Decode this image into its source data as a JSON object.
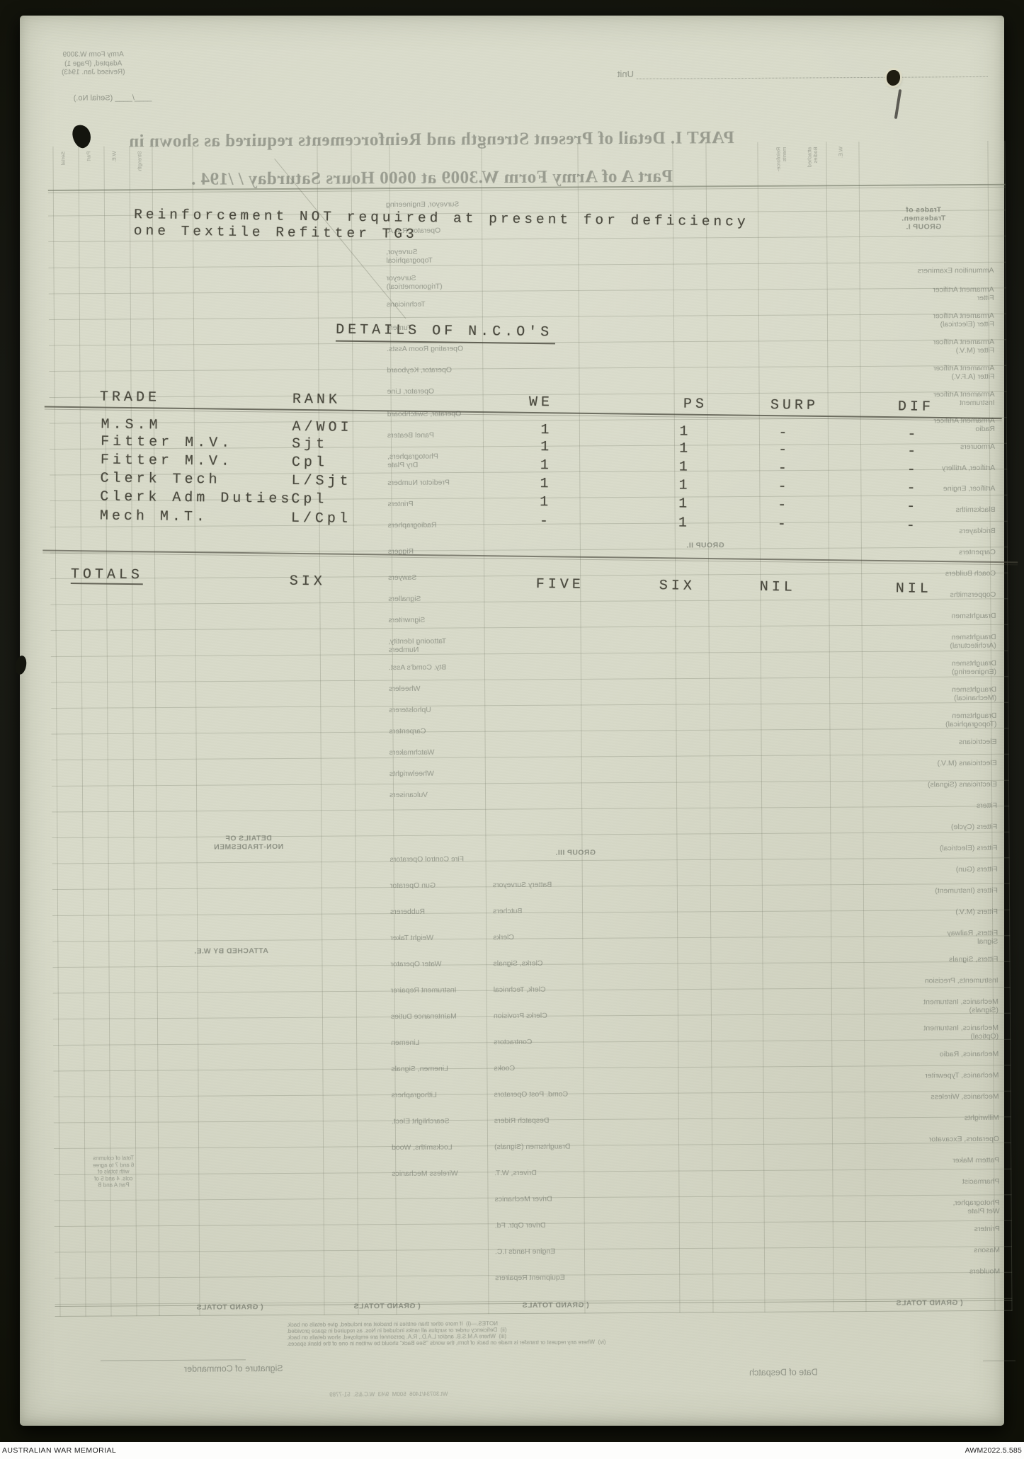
{
  "archive_bar": {
    "institution": "AUSTRALIAN WAR MEMORIAL",
    "accession": "AWM2022.5.585"
  },
  "typed": {
    "notice": [
      "Reinforcement NOT required at present for deficiency",
      "one Textile Refitter TG3"
    ],
    "section_title": "DETAILS OF N.C.O'S",
    "table": {
      "headers": [
        "TRADE",
        "RANK",
        "WE",
        "PS",
        "SURP",
        "DIF"
      ],
      "rows": [
        [
          "M.S.M",
          "A/WOI",
          "1",
          "1",
          "-",
          "-"
        ],
        [
          "Fitter M.V.",
          "Sjt",
          "1",
          "1",
          "-",
          "-"
        ],
        [
          "Fitter M.V.",
          "Cpl",
          "1",
          "1",
          "-",
          "-"
        ],
        [
          "Clerk Tech",
          "L/Sjt",
          "1",
          "1",
          "-",
          "-"
        ],
        [
          "Clerk Adm Duties",
          "Cpl",
          "1",
          "1",
          "-",
          "-"
        ],
        [
          "Mech M.T.",
          "L/Cpl",
          "-",
          "1",
          "-",
          "-"
        ]
      ],
      "totals": [
        "TOTALS",
        "SIX",
        "FIVE",
        "SIX",
        "NIL",
        "NIL"
      ]
    },
    "pencil_mark": "1"
  },
  "bleedthrough": {
    "form_ref": [
      "Army Form W.3009",
      "Adapted, (Page 1)",
      "(Revised Jan. 1943)"
    ],
    "serial": "____/____  (Serial No.)",
    "unit": "Unit",
    "headline": [
      "PART I.  Detail of Present Strength and Reinforcements required as shown in",
      "Part A of Army Form W.3009 at 0600 Hours Saturday     /     /194   ."
    ],
    "group1": [
      "Trades of",
      "Tradesmen.",
      "GROUP I."
    ],
    "group2": "GROUP II.",
    "group3": "GROUP III.",
    "details_nt": [
      "DETAILS OF",
      "NON-TRADESMEN"
    ],
    "attached": "ATTACHED BY W.E.",
    "grand_totals": "GRAND TOTALS",
    "sig": "Signature of Commander",
    "despatch": "Date of Despatch",
    "print_code": "Wt.30734/1406  500M  9/43  W.C.&S.  51-7789",
    "col_headers": [
      [
        86,
        "Serial"
      ],
      [
        122,
        "Part"
      ],
      [
        158,
        "W.E."
      ],
      [
        194,
        "Strength"
      ],
      [
        1096,
        "Reinforce- ments"
      ],
      [
        1140,
        "attached Bodies"
      ],
      [
        1184,
        "W.E."
      ]
    ],
    "notes": [
      "NOTES.—(i)  If more other than entries in bracket are included, give details on back.",
      "(ii)  Deficiency under or surplus all ranks included in Nos. as required in space provided.",
      "(iii)  Where A.M.S.B. and/or L.A.D., R.A. personnel are employed, show details on back.",
      "(iv)  Where any request or transfer is made on back of form, the words \"See Back\" should be written in one of the blank spaces."
    ],
    "left_note": [
      "Total of columns",
      "6 and 7 to agree",
      "with totals of",
      "cols. 4 and 5 of",
      "Part A and B"
    ],
    "mid_col": [
      [
        285,
        "Surveyor, Engineering"
      ],
      [
        322,
        "Operator, R.A.A."
      ],
      [
        352,
        "Surveyor,|Topographical"
      ],
      [
        389,
        "Surveyor|(Trigonometrical)"
      ],
      [
        426,
        "Technicians"
      ],
      [
        459,
        "Turners"
      ],
      [
        489,
        "Operating Room Assts."
      ],
      [
        519,
        "Operator, Keyboard"
      ],
      [
        549,
        "Operator, Line"
      ],
      [
        581,
        "Operator, Switchboard"
      ],
      [
        611,
        "Panel Beaters"
      ],
      [
        641,
        "Photographers,|Dry Plate"
      ],
      [
        678,
        "Predictor Numbers"
      ],
      [
        708,
        "Printers"
      ],
      [
        738,
        "Radiographers"
      ],
      [
        775,
        "Riggers"
      ],
      [
        812,
        "Sawyers"
      ],
      [
        842,
        "Signallers"
      ],
      [
        872,
        "Signwriters"
      ],
      [
        902,
        "Tattooing Identity,|Numbers"
      ],
      [
        939,
        "Bty. Comd's Asst."
      ],
      [
        969,
        "Wheelers"
      ],
      [
        999,
        "Upholsterers"
      ],
      [
        1029,
        "Carpenters"
      ],
      [
        1059,
        "Watchmakers"
      ],
      [
        1089,
        "Wheelwrights"
      ],
      [
        1119,
        "Vulcanisers"
      ],
      [
        1210,
        "Fire Control Operators"
      ],
      [
        1247,
        "Gun Operator"
      ],
      [
        1284,
        "Rubberers"
      ],
      [
        1321,
        "Weight Taker"
      ],
      [
        1358,
        "Water Operator"
      ],
      [
        1395,
        "Instrument Repairer"
      ],
      [
        1432,
        "Maintenance Duties"
      ],
      [
        1469,
        "Linemen"
      ],
      [
        1506,
        "Linemen, Signals"
      ],
      [
        1543,
        "Lithographers"
      ],
      [
        1580,
        "Searchlight Elect."
      ],
      [
        1617,
        "Locksmiths, Wood"
      ],
      [
        1654,
        "Wireless Mechanics"
      ]
    ],
    "inner_col": [
      [
        1247,
        "Battery Surveyors"
      ],
      [
        1284,
        "Butchers"
      ],
      [
        1321,
        "Clerks"
      ],
      [
        1358,
        "Clerks, Signals"
      ],
      [
        1395,
        "Clerk, Technical"
      ],
      [
        1432,
        "Clerks Provision"
      ],
      [
        1469,
        "Contractors"
      ],
      [
        1506,
        "Cooks"
      ],
      [
        1543,
        "Comd. Post Operators"
      ],
      [
        1580,
        "Despatch Riders"
      ],
      [
        1617,
        "Draughtsmen (Signals)"
      ],
      [
        1654,
        "Drivers, W.T."
      ],
      [
        1691,
        "Driver Mechanics"
      ],
      [
        1728,
        "Driver Optr. Fd."
      ],
      [
        1765,
        "Engine Hands I.C."
      ],
      [
        1802,
        "Equipment Repairers"
      ]
    ],
    "right_col": [
      [
        383,
        "Ammunition Examiners"
      ],
      [
        410,
        "Armament Artificer|Fitter"
      ],
      [
        447,
        "Armament Artificer|Fitter (Electrical)"
      ],
      [
        484,
        "Armament Artificer|Fitter (M.V.)"
      ],
      [
        521,
        "Armament Artificer|Fitter (A.F.V.)"
      ],
      [
        558,
        "Armament Artificer|Instrument"
      ],
      [
        595,
        "Armament Artificer|Radio"
      ],
      [
        632,
        "Armourers"
      ],
      [
        662,
        "Artificer, Artillery"
      ],
      [
        691,
        "Artificer, Engine"
      ],
      [
        721,
        "Blacksmiths"
      ],
      [
        751,
        "Bricklayers"
      ],
      [
        781,
        "Carpenters"
      ],
      [
        811,
        "Coach Builders"
      ],
      [
        841,
        "Coppersmiths"
      ],
      [
        871,
        "Draughtsmen"
      ],
      [
        901,
        "Draughtsmen|(Architectural)"
      ],
      [
        938,
        "Draughtsmen|(Engineering)"
      ],
      [
        975,
        "Draughtsmen|(Mechanical)"
      ],
      [
        1012,
        "Draughtsmen|(Topographical)"
      ],
      [
        1049,
        "Electricians"
      ],
      [
        1079,
        "Electricians (M.V.)"
      ],
      [
        1109,
        "Electricians (Signals)"
      ],
      [
        1139,
        "Fitters"
      ],
      [
        1169,
        "Fitters (Cycle)"
      ],
      [
        1199,
        "Fitters (Electrical)"
      ],
      [
        1229,
        "Fitters (Gun)"
      ],
      [
        1259,
        "Fitters (Instrument)"
      ],
      [
        1289,
        "Fitters (M.V.)"
      ],
      [
        1319,
        "Fitters, Railway|Signal"
      ],
      [
        1356,
        "Fitters, Signals"
      ],
      [
        1386,
        "Instruments, Precision"
      ],
      [
        1416,
        "Mechanics, Instrument|(Signals)"
      ],
      [
        1453,
        "Mechanics, Instrument|(Optical)"
      ],
      [
        1490,
        "Mechanics, Radio"
      ],
      [
        1520,
        "Mechanics, Typewriter"
      ],
      [
        1550,
        "Mechanics, Wireless"
      ],
      [
        1580,
        "Millwrights"
      ],
      [
        1610,
        "Operators, Excavator"
      ],
      [
        1640,
        "Pattern Maker"
      ],
      [
        1670,
        "Pharmacist"
      ],
      [
        1700,
        "Photographer,|Wet Plate"
      ],
      [
        1737,
        "Printers"
      ],
      [
        1767,
        "Masons"
      ],
      [
        1797,
        "Moulders"
      ]
    ]
  }
}
